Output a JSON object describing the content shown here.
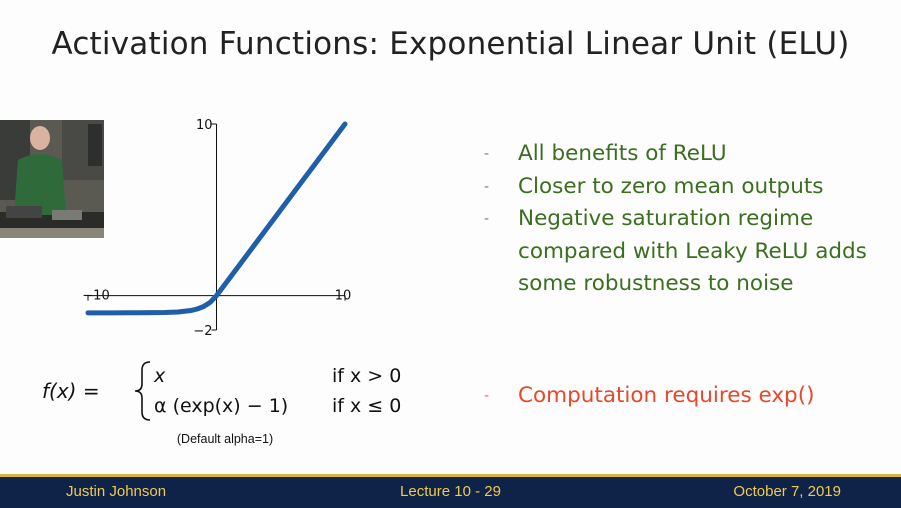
{
  "slide": {
    "title": "Activation Functions: Exponential Linear Unit (ELU)",
    "bullets": [
      "All benefits of ReLU",
      "Closer to zero mean outputs",
      "Negative saturation regime compared with Leaky ReLU adds some robustness to noise"
    ],
    "bullet_marker": "-",
    "con": "Computation requires exp()",
    "alpha_note": "(Default alpha=1)",
    "formula": {
      "lhs": "f(x) =",
      "case1_expr": "x",
      "case1_cond": "if x > 0",
      "case2_expr": "α (exp(x) − 1)",
      "case2_cond": "if x ≤ 0"
    },
    "colors": {
      "bullet_green": "#3b6e1f",
      "con_red": "#e8482a",
      "curve_blue": "#1f5ea8",
      "footer_bg": "#0f2247",
      "footer_text": "#f1cb4e"
    }
  },
  "footer": {
    "author": "Justin Johnson",
    "lecture": "Lecture 10 - 29",
    "date": "October 7, 2019"
  },
  "chart_data": {
    "type": "line",
    "function": "ELU",
    "alpha": 1,
    "xlim": [
      -10,
      10
    ],
    "ylim": [
      -2,
      10
    ],
    "tick_labels": {
      "x_min": "−10",
      "x_max": "10",
      "y_max": "10",
      "y_min": "−2"
    },
    "samples_x": [
      -10,
      -8,
      -6,
      -4,
      -3,
      -2,
      -1.5,
      -1,
      -0.5,
      0,
      2,
      4,
      6,
      8,
      10
    ],
    "samples_y": [
      -0.99995,
      -0.99966,
      -0.99752,
      -0.98168,
      -0.95021,
      -0.86466,
      -0.77687,
      -0.63212,
      -0.39347,
      0,
      2,
      4,
      6,
      8,
      10
    ]
  }
}
